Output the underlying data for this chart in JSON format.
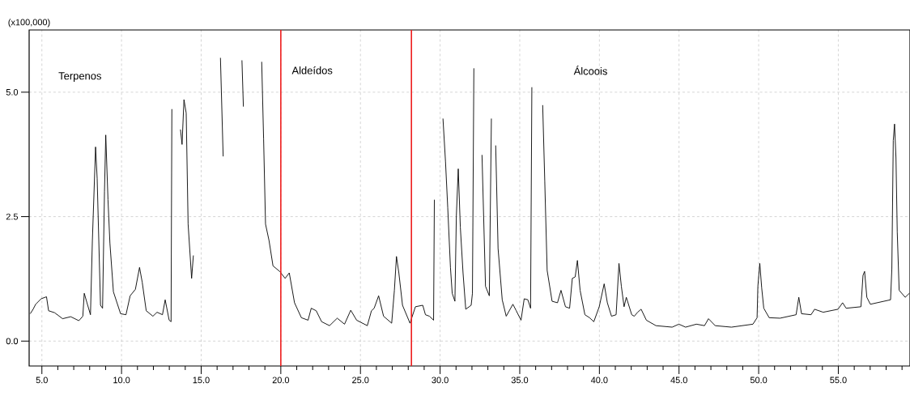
{
  "chart_data": {
    "type": "line",
    "ylabel": "(x100,000)",
    "annotations": [
      "Terpenos",
      "Aldeídos",
      "Álcoois"
    ],
    "x": [
      4.27,
      4.45,
      4.61,
      4.95,
      5.29,
      5.42,
      5.8,
      6.3,
      6.81,
      7.32,
      7.57,
      7.66,
      7.83,
      8.05,
      8.17,
      8.37,
      8.47,
      8.68,
      8.81,
      8.93,
      9.01,
      9.15,
      9.27,
      9.49,
      9.94,
      10.28,
      10.54,
      10.87,
      11.13,
      11.3,
      11.55,
      11.97,
      12.23,
      12.57,
      12.74,
      12.99,
      13.11,
      13.16,
      13.21,
      13.67,
      13.7,
      13.8,
      13.92,
      14.06,
      14.18,
      14.4,
      14.51,
      14.56,
      16.16,
      16.21,
      16.38,
      16.46,
      17.51,
      17.56,
      17.65,
      17.68,
      18.66,
      18.8,
      18.92,
      19.04,
      19.26,
      19.51,
      19.93,
      20.27,
      20.53,
      20.86,
      21.29,
      21.71,
      21.91,
      22.22,
      22.56,
      23.06,
      23.54,
      24.0,
      24.39,
      24.76,
      25.43,
      25.69,
      25.86,
      26.14,
      26.45,
      26.96,
      27.13,
      27.26,
      27.41,
      27.64,
      28.11,
      28.45,
      28.91,
      29.08,
      29.33,
      29.59,
      29.64,
      29.72,
      30.09,
      30.18,
      30.34,
      30.48,
      30.65,
      30.76,
      30.93,
      31.02,
      31.14,
      31.27,
      31.44,
      31.61,
      31.95,
      32.03,
      32.12,
      32.2,
      32.54,
      32.63,
      32.85,
      33.09,
      33.22,
      33.34,
      33.48,
      33.49,
      33.64,
      33.9,
      34.15,
      34.57,
      34.78,
      35.08,
      35.28,
      35.51,
      35.68,
      35.76,
      35.84,
      36.35,
      36.44,
      36.57,
      36.72,
      37.03,
      37.37,
      37.59,
      37.87,
      38.13,
      38.3,
      38.48,
      38.62,
      38.79,
      39.09,
      39.38,
      39.65,
      39.99,
      40.3,
      40.5,
      40.76,
      41.05,
      41.23,
      41.38,
      41.55,
      41.69,
      42.03,
      42.19,
      42.4,
      42.62,
      42.95,
      43.55,
      44.57,
      44.99,
      45.41,
      46.09,
      46.6,
      46.85,
      47.27,
      48.29,
      49.64,
      49.9,
      49.95,
      50.07,
      50.19,
      50.32,
      50.66,
      51.34,
      52.35,
      52.52,
      52.69,
      53.29,
      53.51,
      54.05,
      54.98,
      55.27,
      55.49,
      56.42,
      56.55,
      56.65,
      56.79,
      57.01,
      58.28,
      58.36,
      58.45,
      58.53,
      58.62,
      58.7,
      58.82,
      59.2,
      59.46
    ],
    "series": [
      {
        "color": "#000000",
        "values": [
          0.55,
          0.64,
          0.74,
          0.85,
          0.89,
          0.61,
          0.57,
          0.45,
          0.49,
          0.41,
          0.5,
          0.96,
          0.77,
          0.53,
          2.02,
          3.9,
          3.27,
          0.72,
          0.66,
          3.0,
          4.14,
          2.84,
          1.97,
          0.99,
          0.55,
          0.53,
          0.91,
          1.04,
          1.48,
          1.18,
          0.61,
          0.5,
          0.58,
          0.53,
          0.83,
          0.42,
          0.39,
          4.66,
          null,
          null,
          4.25,
          3.95,
          4.85,
          4.58,
          2.35,
          1.26,
          1.72,
          null,
          null,
          5.69,
          3.71,
          null,
          null,
          5.64,
          4.71,
          null,
          null,
          5.61,
          4.06,
          2.35,
          2.02,
          1.51,
          1.4,
          1.26,
          1.37,
          0.77,
          0.47,
          0.42,
          0.66,
          0.61,
          0.39,
          0.31,
          0.46,
          0.34,
          0.62,
          0.42,
          0.31,
          0.61,
          0.66,
          0.91,
          0.5,
          0.36,
          1.02,
          1.7,
          1.37,
          0.72,
          0.36,
          0.69,
          0.72,
          0.53,
          0.5,
          0.42,
          2.84,
          null,
          null,
          4.47,
          3.6,
          2.68,
          1.48,
          0.96,
          0.8,
          2.51,
          3.46,
          2.29,
          1.37,
          0.64,
          0.72,
          0.96,
          5.48,
          null,
          null,
          3.74,
          1.1,
          0.91,
          4.47,
          null,
          null,
          3.93,
          1.86,
          0.83,
          0.5,
          0.74,
          0.61,
          0.42,
          0.85,
          0.83,
          0.66,
          5.1,
          null,
          null,
          4.74,
          3.22,
          1.42,
          0.8,
          0.77,
          1.02,
          0.69,
          0.66,
          1.26,
          1.29,
          1.62,
          1.02,
          0.53,
          0.47,
          0.39,
          0.69,
          1.15,
          0.77,
          0.5,
          0.53,
          1.56,
          1.1,
          0.69,
          0.88,
          0.53,
          0.5,
          0.58,
          0.64,
          0.42,
          0.31,
          0.28,
          0.34,
          0.28,
          0.34,
          0.31,
          0.45,
          0.31,
          0.28,
          0.34,
          0.47,
          1.1,
          1.56,
          1.07,
          0.66,
          0.47,
          0.46,
          0.53,
          0.88,
          0.55,
          0.53,
          0.64,
          0.58,
          0.64,
          0.77,
          0.66,
          0.69,
          1.32,
          1.4,
          0.88,
          0.74,
          0.83,
          1.45,
          4.03,
          4.36,
          3.68,
          2.19,
          1.02,
          0.88,
          0.96
        ]
      }
    ],
    "xlim": [
      4.2,
      59.5
    ],
    "ylim": [
      -0.5,
      6.25
    ],
    "xticks": [
      {
        "value": 5,
        "label": "5.0"
      },
      {
        "value": 6,
        "label": null
      },
      {
        "value": 7,
        "label": null
      },
      {
        "value": 8,
        "label": null
      },
      {
        "value": 9,
        "label": null
      },
      {
        "value": 10,
        "label": "10.0"
      },
      {
        "value": 11,
        "label": null
      },
      {
        "value": 12,
        "label": null
      },
      {
        "value": 13,
        "label": null
      },
      {
        "value": 14,
        "label": null
      },
      {
        "value": 15,
        "label": "15.0"
      },
      {
        "value": 16,
        "label": null
      },
      {
        "value": 17,
        "label": null
      },
      {
        "value": 18,
        "label": null
      },
      {
        "value": 19,
        "label": null
      },
      {
        "value": 20,
        "label": "20.0"
      },
      {
        "value": 21,
        "label": null
      },
      {
        "value": 22,
        "label": null
      },
      {
        "value": 23,
        "label": null
      },
      {
        "value": 24,
        "label": null
      },
      {
        "value": 25,
        "label": "25.0"
      },
      {
        "value": 26,
        "label": null
      },
      {
        "value": 27,
        "label": null
      },
      {
        "value": 28,
        "label": null
      },
      {
        "value": 29,
        "label": null
      },
      {
        "value": 30,
        "label": "30.0"
      },
      {
        "value": 31,
        "label": null
      },
      {
        "value": 32,
        "label": null
      },
      {
        "value": 33,
        "label": null
      },
      {
        "value": 34,
        "label": null
      },
      {
        "value": 35,
        "label": "35.0"
      },
      {
        "value": 36,
        "label": null
      },
      {
        "value": 37,
        "label": null
      },
      {
        "value": 38,
        "label": null
      },
      {
        "value": 39,
        "label": null
      },
      {
        "value": 40,
        "label": "40.0"
      },
      {
        "value": 41,
        "label": null
      },
      {
        "value": 42,
        "label": null
      },
      {
        "value": 43,
        "label": null
      },
      {
        "value": 44,
        "label": null
      },
      {
        "value": 45,
        "label": "45.0"
      },
      {
        "value": 46,
        "label": null
      },
      {
        "value": 47,
        "label": null
      },
      {
        "value": 48,
        "label": null
      },
      {
        "value": 49,
        "label": null
      },
      {
        "value": 50,
        "label": "50.0"
      },
      {
        "value": 51,
        "label": null
      },
      {
        "value": 52,
        "label": null
      },
      {
        "value": 53,
        "label": null
      },
      {
        "value": 54,
        "label": null
      },
      {
        "value": 55,
        "label": "55.0"
      },
      {
        "value": 56,
        "label": null
      },
      {
        "value": 57,
        "label": null
      },
      {
        "value": 58,
        "label": null
      },
      {
        "value": 59,
        "label": null
      }
    ],
    "yticks": [
      {
        "value": 0,
        "label": "0.0"
      },
      {
        "value": 2.5,
        "label": "2.5"
      },
      {
        "value": 5,
        "label": "5.0"
      }
    ],
    "grid": true,
    "ref_lines": [
      {
        "axis": "x",
        "value": 20.0,
        "color": "#ee1c1c"
      },
      {
        "axis": "x",
        "value": 28.2,
        "color": "#ee1c1c"
      }
    ]
  }
}
